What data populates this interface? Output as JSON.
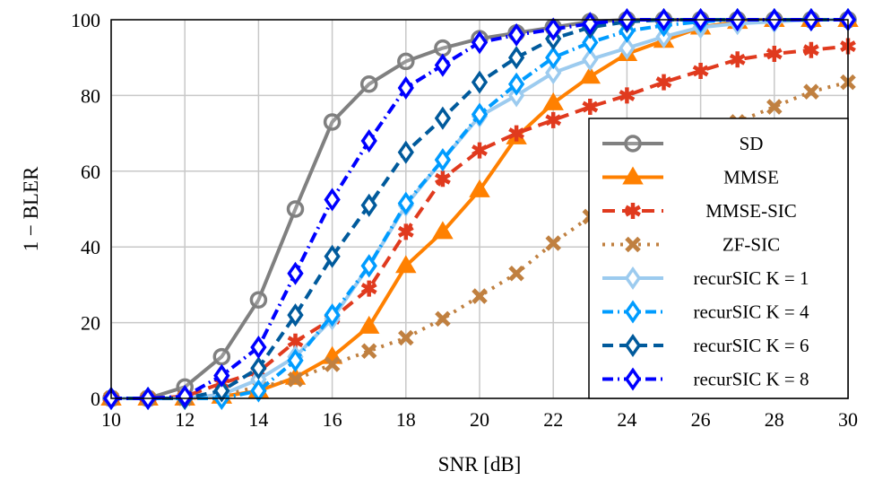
{
  "chart_data": {
    "type": "line",
    "title": "",
    "xlabel": "SNR [dB]",
    "ylabel": "1 − BLER",
    "xlim": [
      10,
      30
    ],
    "ylim": [
      0,
      100
    ],
    "xticks": [
      10,
      12,
      14,
      16,
      18,
      20,
      22,
      24,
      26,
      28,
      30
    ],
    "yticks": [
      0,
      20,
      40,
      60,
      80,
      100
    ],
    "grid": true,
    "legend_position": "bottom-right",
    "x": [
      10,
      11,
      12,
      13,
      14,
      15,
      16,
      17,
      18,
      19,
      20,
      21,
      22,
      23,
      24,
      25,
      26,
      27,
      28,
      29,
      30
    ],
    "series": [
      {
        "name": "SD",
        "color": "#808080",
        "dash": "",
        "marker": "circle",
        "values": [
          0,
          0,
          3,
          11,
          26,
          50,
          73,
          83,
          89,
          92.5,
          95,
          96.5,
          98,
          99.5,
          100,
          100,
          100,
          100,
          100,
          100,
          100
        ]
      },
      {
        "name": "MMSE",
        "color": "#ff8000",
        "dash": "",
        "marker": "triangle",
        "values": [
          0,
          0,
          0,
          0.5,
          2,
          5.5,
          11,
          19,
          35,
          44,
          55,
          69,
          78,
          85,
          91,
          94.5,
          98,
          99.5,
          100,
          100,
          100
        ]
      },
      {
        "name": "MMSE-SIC",
        "color": "#e03a1e",
        "dash": "14,8",
        "marker": "star",
        "values": [
          0,
          0,
          0.5,
          4,
          7,
          15,
          21,
          29,
          44,
          58,
          65.5,
          70,
          73.5,
          77,
          80,
          83.5,
          86.5,
          89.5,
          91,
          92,
          93
        ]
      },
      {
        "name": "ZF-SIC",
        "color": "#c08040",
        "dash": "3,7",
        "marker": "cross",
        "values": [
          0,
          0,
          0,
          1,
          3,
          5,
          9,
          12.5,
          16,
          21,
          27,
          33,
          41,
          48,
          55,
          62,
          69,
          73,
          77,
          81,
          83.5
        ]
      },
      {
        "name": "recurSIC K = 1",
        "color": "#9ccbef",
        "dash": "",
        "marker": "diamond",
        "values": [
          0,
          0,
          0,
          1,
          5,
          11,
          21,
          35,
          51,
          63,
          74.5,
          80,
          86,
          89.5,
          92.5,
          95.5,
          98,
          99,
          99.5,
          100,
          100
        ]
      },
      {
        "name": "recurSIC K = 4",
        "color": "#009cff",
        "dash": "12,5,2,5",
        "marker": "diamond",
        "values": [
          0,
          0,
          0,
          0,
          2,
          10,
          22,
          35,
          51.5,
          63,
          75,
          83,
          90,
          94,
          97,
          98.5,
          99.5,
          100,
          100,
          100,
          100
        ]
      },
      {
        "name": "recurSIC K = 6",
        "color": "#005a9c",
        "dash": "12,7",
        "marker": "diamond",
        "values": [
          0,
          0,
          0,
          2,
          8,
          22,
          37.5,
          51,
          65,
          74,
          83.5,
          90,
          95,
          98,
          99.5,
          100,
          100,
          100,
          100,
          100,
          100
        ]
      },
      {
        "name": "recurSIC K = 8",
        "color": "#0000ff",
        "dash": "12,5,2,5",
        "marker": "diamond",
        "values": [
          0,
          0,
          0.5,
          6,
          13.5,
          33,
          52.5,
          68,
          82,
          88,
          94,
          96,
          97.5,
          99,
          100,
          100,
          100,
          100,
          100,
          100,
          100
        ]
      }
    ]
  }
}
